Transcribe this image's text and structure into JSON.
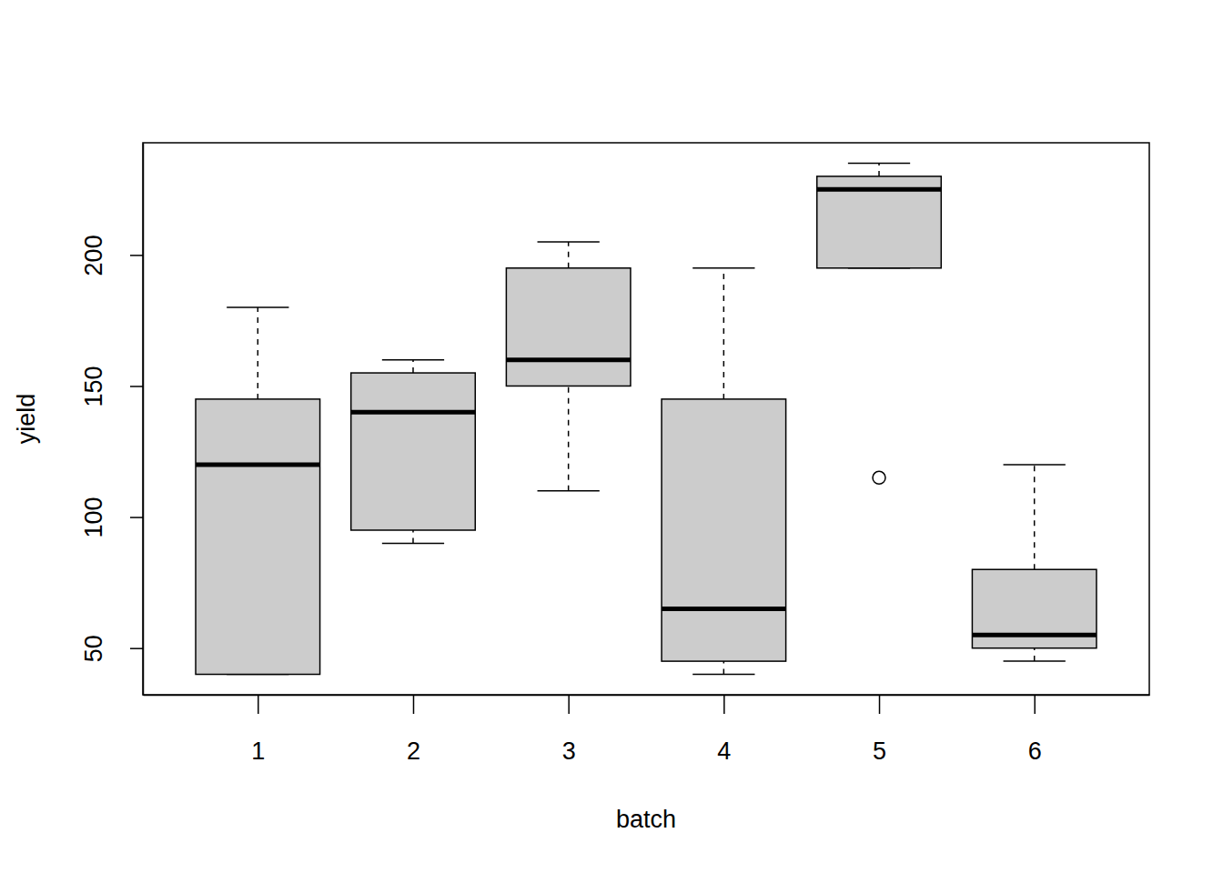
{
  "chart_data": {
    "type": "box",
    "x_label": "batch",
    "y_label": "yield",
    "categories": [
      "1",
      "2",
      "3",
      "4",
      "5",
      "6"
    ],
    "whisker_low": [
      40,
      90,
      110,
      40,
      195,
      45
    ],
    "q1": [
      40,
      95,
      150,
      45,
      195,
      50
    ],
    "median": [
      120,
      140,
      160,
      65,
      225,
      55
    ],
    "q3": [
      145,
      155,
      195,
      145,
      230,
      80
    ],
    "whisker_high": [
      180,
      160,
      205,
      195,
      235,
      120
    ],
    "outliers": [
      [],
      [],
      [],
      [],
      [
        115
      ],
      []
    ],
    "color": "#cccccc",
    "ylim": [
      32.2,
      242.8
    ],
    "yticks": [
      50,
      100,
      150,
      200
    ]
  }
}
